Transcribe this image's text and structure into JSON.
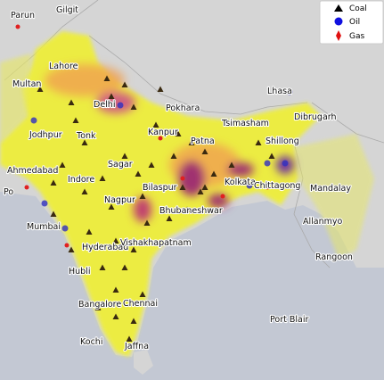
{
  "legend": {
    "items": [
      {
        "label": "Coal"
      },
      {
        "label": "Oil"
      },
      {
        "label": "Gas"
      }
    ]
  },
  "cities": [
    "Parun",
    "Gilgit",
    "Lahore",
    "Multan",
    "Delhi",
    "Pokhara",
    "Lhasa",
    "Dibrugarh",
    "Tsimasham",
    "Jodhpur",
    "Tonk",
    "Kanpur",
    "Patna",
    "Shillong",
    "Sagar",
    "Ahmedabad",
    "Indore",
    "Bilaspur",
    "Kolkata",
    "Chittagong",
    "Mandalay",
    "Po",
    "Nagpur",
    "Bhubaneshwar",
    "Allanmyo",
    "Mumbai",
    "Hyderabad",
    "Vishakhapatnam",
    "Rangoon",
    "Hubli",
    "Bangalore",
    "Chennai",
    "Port Blair",
    "Kochi",
    "Jaffna"
  ]
}
